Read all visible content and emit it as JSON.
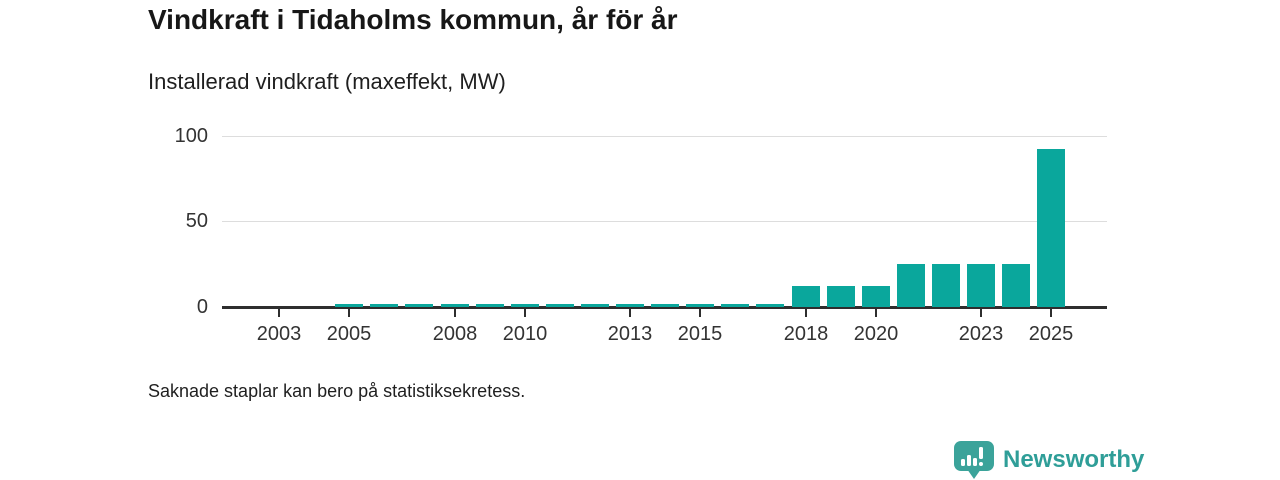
{
  "chart_data": {
    "type": "bar",
    "title": "Vindkraft i Tidaholms kommun, år för år",
    "subtitle": "Installerad vindkraft (maxeffekt, MW)",
    "note": "Saknade staplar kan bero på statistiksekretess.",
    "unit": "MW",
    "categories": [
      2002,
      2003,
      2004,
      2005,
      2006,
      2007,
      2008,
      2009,
      2010,
      2011,
      2012,
      2013,
      2014,
      2015,
      2016,
      2017,
      2018,
      2019,
      2020,
      2021,
      2022,
      2023,
      2024,
      2025
    ],
    "values": [
      0,
      0,
      0,
      1.7,
      1.7,
      1.7,
      1.7,
      1.7,
      1.7,
      1.7,
      1.7,
      1.7,
      1.7,
      1.7,
      1.7,
      1.7,
      12,
      12,
      12.5,
      25,
      25,
      25,
      25,
      92.5
    ],
    "x_tick_years": [
      2003,
      2005,
      2008,
      2010,
      2013,
      2015,
      2018,
      2020,
      2023,
      2025
    ],
    "yticks": [
      0,
      50,
      100
    ],
    "ylim": [
      0,
      100
    ],
    "grid": "horizontal",
    "legend": "none"
  },
  "footer": {
    "brand": "Newsworthy"
  },
  "icons": {
    "logo": "newsworthy-speech-bubble-bar-chart-icon"
  },
  "colors": {
    "bar": "#0aa79c",
    "brand_bubble": "#3ba39a",
    "brand_text": "#2f9e98",
    "axis_line": "#2e2e2e",
    "grid_line": "#dddddd",
    "text": "#171717",
    "axis_text": "#333333"
  }
}
